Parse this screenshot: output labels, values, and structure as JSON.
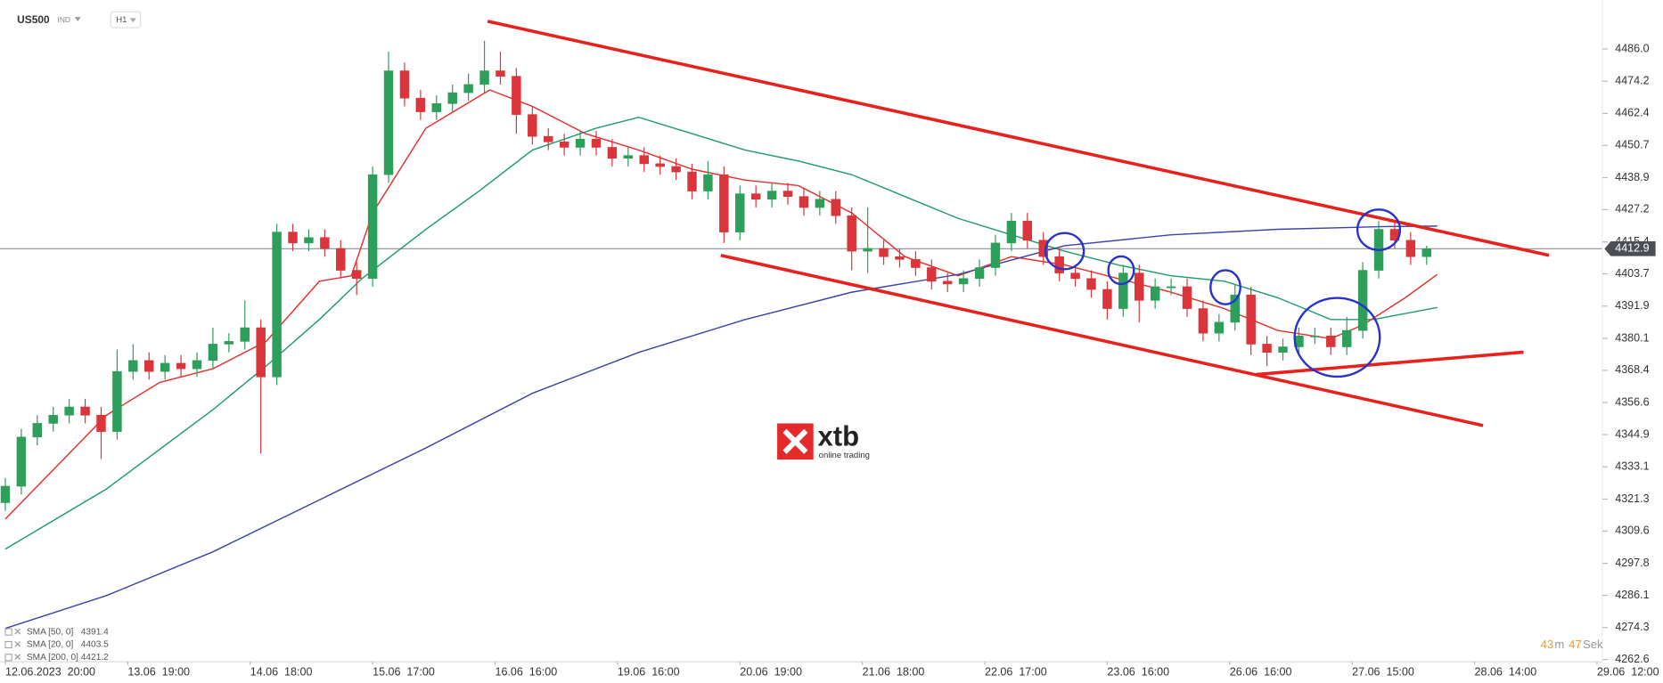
{
  "chart_data": {
    "type": "candlestick",
    "symbol": "US500",
    "market": "IND",
    "timeframe": "H1",
    "countdown": {
      "minutes": 43,
      "minutes_unit": "m",
      "seconds": 47,
      "seconds_unit": "Sek"
    },
    "logo": {
      "name": "xtb",
      "tagline": "online trading"
    },
    "xlim": [
      -1,
      300
    ],
    "ylim": [
      4261.8,
      4503.9
    ],
    "xticks": [
      {
        "value": 0,
        "label": "12.06.2023  20:00"
      },
      {
        "value": 23,
        "label": "13.06  19:00"
      },
      {
        "value": 46,
        "label": "14.06  18:00"
      },
      {
        "value": 69,
        "label": "15.06  17:00"
      },
      {
        "value": 92,
        "label": "16.06  16:00"
      },
      {
        "value": 115,
        "label": "19.06  16:00"
      },
      {
        "value": 138,
        "label": "20.06  19:00"
      },
      {
        "value": 161,
        "label": "21.06  18:00"
      },
      {
        "value": 184,
        "label": "22.06  17:00"
      },
      {
        "value": 207,
        "label": "23.06  16:00"
      },
      {
        "value": 230,
        "label": "26.06  16:00"
      },
      {
        "value": 253,
        "label": "27.06  15:00"
      },
      {
        "value": 276,
        "label": "28.06  14:00"
      },
      {
        "value": 299,
        "label": "29.06  12:00"
      }
    ],
    "yticks": [
      4262.6,
      4274.3,
      4286.1,
      4297.8,
      4309.6,
      4321.3,
      4333.1,
      4344.9,
      4356.6,
      4368.4,
      4380.1,
      4391.9,
      4403.7,
      4415.4,
      4427.2,
      4438.9,
      4450.7,
      4462.4,
      4474.2,
      {
        "value": 4486,
        "label": "4486.0"
      }
    ],
    "last_price": 4412.9,
    "up_color": "#2e9e5b",
    "down_color": "#d9353a",
    "x": [
      0,
      3,
      6,
      9,
      12,
      15,
      18,
      21,
      24,
      27,
      30,
      33,
      36,
      39,
      42,
      45,
      48,
      51,
      54,
      57,
      60,
      63,
      66,
      69,
      72,
      75,
      78,
      81,
      84,
      87,
      90,
      93,
      96,
      99,
      102,
      105,
      108,
      111,
      114,
      117,
      120,
      123,
      126,
      129,
      132,
      135,
      138,
      141,
      144,
      147,
      150,
      153,
      156,
      159,
      162,
      165,
      168,
      171,
      174,
      177,
      180,
      183,
      186,
      189,
      192,
      195,
      198,
      201,
      204,
      207,
      210,
      213,
      216,
      219,
      222,
      225,
      228,
      231,
      234,
      237,
      240,
      243,
      246,
      249,
      252,
      255,
      258,
      261,
      264,
      267
    ],
    "candles": [
      [
        4320,
        4329,
        4317,
        4326
      ],
      [
        4326,
        4347,
        4323,
        4344
      ],
      [
        4344,
        4352,
        4341,
        4349
      ],
      [
        4349,
        4355,
        4346,
        4352
      ],
      [
        4352,
        4358,
        4349,
        4355
      ],
      [
        4355,
        4358,
        4349,
        4352
      ],
      [
        4352,
        4355,
        4336,
        4346
      ],
      [
        4346,
        4376,
        4343,
        4368
      ],
      [
        4368,
        4378,
        4365,
        4372
      ],
      [
        4372,
        4375,
        4365,
        4368
      ],
      [
        4368,
        4374,
        4365,
        4371
      ],
      [
        4371,
        4374,
        4366,
        4369
      ],
      [
        4369,
        4375,
        4366,
        4372
      ],
      [
        4372,
        4384,
        4369,
        4378
      ],
      [
        4378,
        4382,
        4375,
        4379
      ],
      [
        4379,
        4394,
        4376,
        4384
      ],
      [
        4384,
        4387,
        4338,
        4366
      ],
      [
        4366,
        4422,
        4363,
        4419
      ],
      [
        4419,
        4422,
        4412,
        4415
      ],
      [
        4415,
        4420,
        4412,
        4417
      ],
      [
        4417,
        4420,
        4410,
        4413
      ],
      [
        4413,
        4416,
        4402,
        4405
      ],
      [
        4405,
        4408,
        4396,
        4402
      ],
      [
        4402,
        4443,
        4399,
        4440
      ],
      [
        4440,
        4485,
        4437,
        4478
      ],
      [
        4478,
        4481,
        4465,
        4468
      ],
      [
        4468,
        4471,
        4460,
        4463
      ],
      [
        4463,
        4469,
        4460,
        4466
      ],
      [
        4466,
        4473,
        4463,
        4470
      ],
      [
        4470,
        4477,
        4467,
        4473
      ],
      [
        4473,
        4489,
        4470,
        4478
      ],
      [
        4478,
        4485,
        4473,
        4476
      ],
      [
        4476,
        4479,
        4455,
        4462
      ],
      [
        4462,
        4465,
        4451,
        4454
      ],
      [
        4454,
        4457,
        4449,
        4452
      ],
      [
        4452,
        4455,
        4447,
        4450
      ],
      [
        4450,
        4456,
        4447,
        4453
      ],
      [
        4453,
        4456,
        4447,
        4450
      ],
      [
        4450,
        4453,
        4443,
        4446
      ],
      [
        4446,
        4450,
        4443,
        4447
      ],
      [
        4447,
        4450,
        4441,
        4444
      ],
      [
        4444,
        4447,
        4440,
        4443
      ],
      [
        4443,
        4446,
        4438,
        4441
      ],
      [
        4441,
        4444,
        4431,
        4434
      ],
      [
        4434,
        4445,
        4431,
        4440
      ],
      [
        4440,
        4443,
        4415,
        4419
      ],
      [
        4419,
        4436,
        4416,
        4433
      ],
      [
        4433,
        4436,
        4428,
        4431
      ],
      [
        4431,
        4437,
        4428,
        4434
      ],
      [
        4434,
        4437,
        4429,
        4432
      ],
      [
        4432,
        4435,
        4425,
        4428
      ],
      [
        4428,
        4434,
        4425,
        4431
      ],
      [
        4431,
        4434,
        4422,
        4425
      ],
      [
        4425,
        4428,
        4405,
        4412
      ],
      [
        4412,
        4428,
        4404,
        4413
      ],
      [
        4413,
        4416,
        4407,
        4410
      ],
      [
        4410,
        4413,
        4406,
        4409
      ],
      [
        4409,
        4412,
        4403,
        4406
      ],
      [
        4406,
        4409,
        4398,
        4401
      ],
      [
        4401,
        4404,
        4397,
        4400
      ],
      [
        4400,
        4405,
        4397,
        4402
      ],
      [
        4402,
        4409,
        4399,
        4406
      ],
      [
        4406,
        4418,
        4403,
        4415
      ],
      [
        4415,
        4426,
        4412,
        4423
      ],
      [
        4423,
        4426,
        4413,
        4416
      ],
      [
        4416,
        4419,
        4407,
        4410
      ],
      [
        4410,
        4413,
        4401,
        4404
      ],
      [
        4404,
        4407,
        4399,
        4402
      ],
      [
        4402,
        4405,
        4395,
        4398
      ],
      [
        4398,
        4401,
        4387,
        4391
      ],
      [
        4391,
        4407,
        4388,
        4404
      ],
      [
        4404,
        4407,
        4386,
        4394
      ],
      [
        4394,
        4402,
        4391,
        4399
      ],
      [
        4399,
        4402,
        4396,
        4399
      ],
      [
        4399,
        4402,
        4388,
        4391
      ],
      [
        4391,
        4394,
        4379,
        4382
      ],
      [
        4382,
        4389,
        4379,
        4386
      ],
      [
        4386,
        4400,
        4383,
        4396
      ],
      [
        4396,
        4399,
        4374,
        4378
      ],
      [
        4378,
        4381,
        4370,
        4375
      ],
      [
        4375,
        4380,
        4372,
        4377
      ],
      [
        4377,
        4384,
        4374,
        4381
      ],
      [
        4381,
        4384,
        4378,
        4381
      ],
      [
        4381,
        4384,
        4374,
        4377
      ],
      [
        4377,
        4388,
        4374,
        4383
      ],
      [
        4383,
        4408,
        4380,
        4405
      ],
      [
        4405,
        4423,
        4402,
        4420
      ],
      [
        4420,
        4423,
        4413,
        4416
      ],
      [
        4416,
        4419,
        4407,
        4410
      ],
      [
        4410,
        4414,
        4407,
        4412.9
      ]
    ],
    "series": [
      {
        "name": "SMA [50, 0]",
        "color": "#1f9a6e",
        "last": 4391.4,
        "x": [
          0,
          19,
          39,
          49,
          59,
          67,
          79,
          89,
          99,
          111,
          119,
          129,
          139,
          149,
          159,
          169,
          179,
          189,
          199,
          209,
          219,
          229,
          239,
          249,
          257,
          269
        ],
        "values": [
          4303,
          4325,
          4354,
          4370,
          4387,
          4402,
          4420,
          4434,
          4449,
          4457,
          4461,
          4455,
          4449,
          4445,
          4440,
          4432,
          4424,
          4418,
          4412,
          4407,
          4403,
          4401,
          4395,
          4387,
          4387,
          4391.4
        ]
      },
      {
        "name": "SMA [20, 0]",
        "color": "#e5302b",
        "last": 4403.5,
        "x": [
          0,
          19,
          29,
          39,
          49,
          59,
          65,
          69,
          79,
          91,
          99,
          109,
          119,
          129,
          139,
          149,
          159,
          169,
          179,
          189,
          199,
          209,
          219,
          229,
          239,
          249,
          255,
          263,
          269
        ],
        "values": [
          4314,
          4352,
          4364,
          4369,
          4379,
          4401,
          4403,
          4426,
          4457,
          4471,
          4465,
          4455,
          4449,
          4442,
          4438,
          4436,
          4426,
          4410,
          4403,
          4410,
          4407,
          4402,
          4397,
          4391,
          4383,
          4380,
          4385,
          4395,
          4403.5
        ]
      },
      {
        "name": "SMA [200, 0]",
        "color": "#3c44a6",
        "last": 4421.2,
        "x": [
          0,
          19,
          39,
          59,
          79,
          99,
          119,
          139,
          159,
          179,
          199,
          219,
          239,
          259,
          269
        ],
        "values": [
          4274,
          4286,
          4302,
          4321,
          4340,
          4360,
          4375,
          4387,
          4397,
          4403.5,
          4414,
          4418,
          4420,
          4421,
          4421.2
        ]
      }
    ]
  }
}
